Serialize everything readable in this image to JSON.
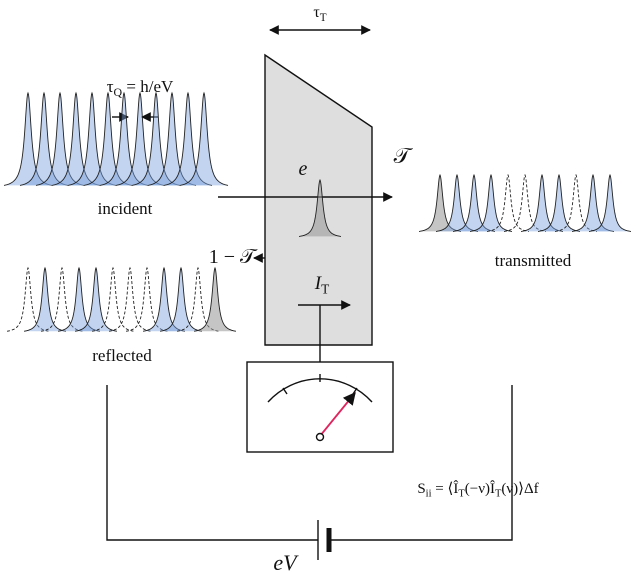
{
  "labels": [
    {
      "parts": [
        {
          "t": "τ"
        },
        {
          "s": "T"
        }
      ]
    },
    {
      "parts": [
        {
          "t": "τ"
        },
        {
          "s": "Q"
        },
        {
          "t": " = h/eV"
        }
      ]
    },
    {
      "parts": [
        {
          "t": "incident"
        }
      ]
    },
    {
      "parts": [
        {
          "t": "e"
        }
      ]
    },
    {
      "parts": [
        {
          "t": "𝒯"
        }
      ]
    },
    {
      "parts": [
        {
          "t": "1 − 𝒯"
        }
      ]
    },
    {
      "parts": [
        {
          "t": "transmitted"
        }
      ]
    },
    {
      "parts": [
        {
          "t": "I"
        },
        {
          "s": "T"
        }
      ]
    },
    {
      "parts": [
        {
          "t": "reflected"
        }
      ]
    },
    {
      "parts": [
        {
          "t": "S"
        },
        {
          "s": "ii"
        },
        {
          "t": " = ⟨Î"
        },
        {
          "s": "T"
        },
        {
          "t": "(−ν)Î"
        },
        {
          "s": "T"
        },
        {
          "t": "(ν)⟩Δf"
        }
      ]
    },
    {
      "parts": [
        {
          "t": "eV"
        }
      ]
    }
  ]
}
